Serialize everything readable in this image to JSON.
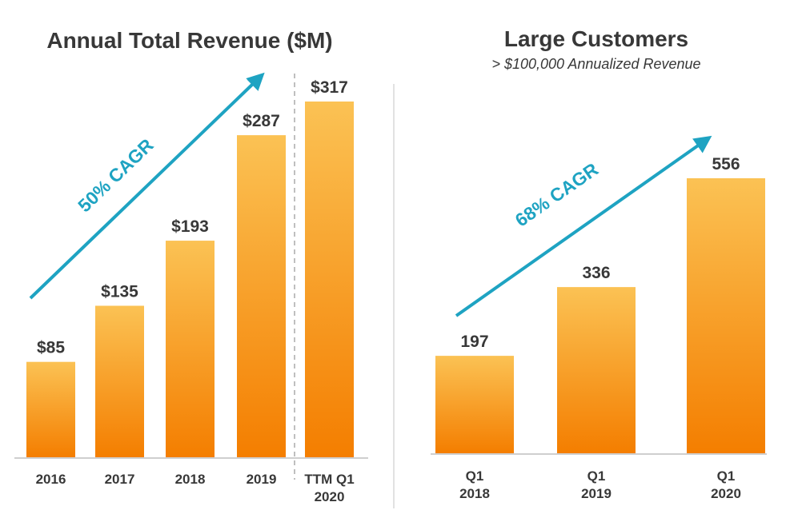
{
  "colors": {
    "bar_top": "#fbc254",
    "bar_bottom": "#f47e00",
    "arrow": "#1ea3c2",
    "text": "#383838",
    "axis": "#cfcfcf"
  },
  "chart_data": [
    {
      "type": "bar",
      "title": "Annual Total Revenue ($M)",
      "categories": [
        "2016",
        "2017",
        "2018",
        "2019",
        "TTM Q1 2020"
      ],
      "category_lines": [
        [
          "2016"
        ],
        [
          "2017"
        ],
        [
          "2018"
        ],
        [
          "2019"
        ],
        [
          "TTM Q1",
          "2020"
        ]
      ],
      "values": [
        85,
        135,
        193,
        287,
        317
      ],
      "data_labels": [
        "$85",
        "$135",
        "$193",
        "$287",
        "$317"
      ],
      "annotation": "50% CAGR",
      "separator_before_last": "dashed",
      "grid": false,
      "ylim": [
        0,
        317
      ]
    },
    {
      "type": "bar",
      "title": "Large Customers",
      "subtitle": "> $100,000 Annualized Revenue",
      "categories": [
        "Q1 2018",
        "Q1 2019",
        "Q1 2020"
      ],
      "category_lines": [
        [
          "Q1",
          "2018"
        ],
        [
          "Q1",
          "2019"
        ],
        [
          "Q1",
          "2020"
        ]
      ],
      "values": [
        197,
        336,
        556
      ],
      "data_labels": [
        "197",
        "336",
        "556"
      ],
      "annotation": "68% CAGR",
      "grid": false,
      "ylim": [
        0,
        556
      ]
    }
  ]
}
